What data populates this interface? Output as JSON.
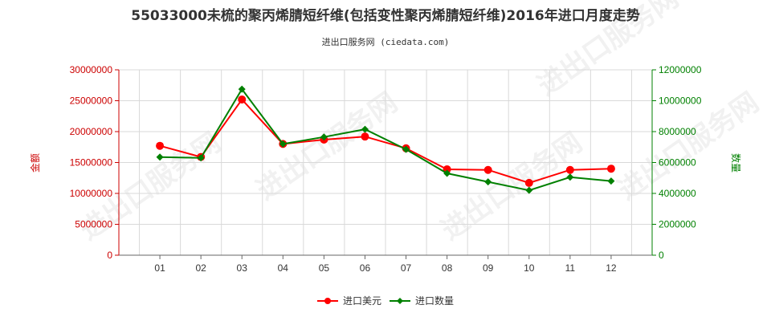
{
  "chart_data": {
    "type": "line",
    "title": "55033000未梳的聚丙烯腈短纤维(包括变性聚丙烯腈短纤维)2016年进口月度走势",
    "subtitle": "进出口服务网 (ciedata.com)",
    "watermark": "进出口服务网",
    "categories": [
      "01",
      "02",
      "03",
      "04",
      "05",
      "06",
      "07",
      "08",
      "09",
      "10",
      "11",
      "12"
    ],
    "left_axis": {
      "label": "金额",
      "ylim": [
        0,
        30000000
      ],
      "ticks": [
        "0",
        "5000000",
        "10000000",
        "15000000",
        "20000000",
        "25000000",
        "30000000"
      ],
      "color": "#cc0000"
    },
    "right_axis": {
      "label": "数量",
      "ylim": [
        0,
        12000000
      ],
      "ticks": [
        "0",
        "2000000",
        "4000000",
        "6000000",
        "8000000",
        "10000000",
        "12000000"
      ],
      "color": "#008000"
    },
    "series": [
      {
        "name": "进口美元",
        "axis": "left",
        "color": "#ff0000",
        "values": [
          17700000,
          15900000,
          25200000,
          18000000,
          18700000,
          19200000,
          17300000,
          13900000,
          13800000,
          11700000,
          13800000,
          14000000
        ]
      },
      {
        "name": "进口数量",
        "axis": "right",
        "color": "#008000",
        "values": [
          6350000,
          6300000,
          10750000,
          7200000,
          7650000,
          8150000,
          6850000,
          5300000,
          4750000,
          4200000,
          5050000,
          4800000
        ]
      }
    ],
    "grid": true,
    "legend_position": "bottom-center"
  }
}
